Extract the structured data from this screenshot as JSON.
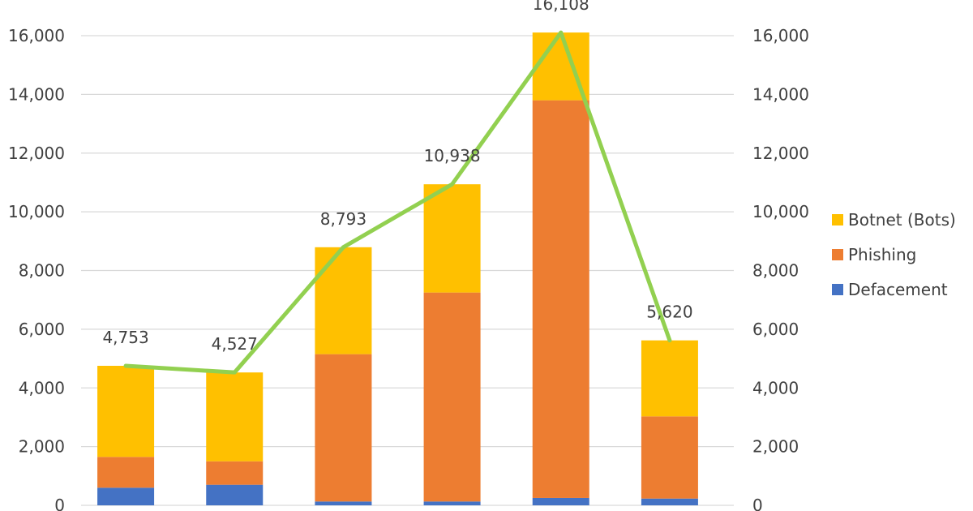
{
  "chart_data": {
    "type": "bar",
    "stacked": true,
    "categories": [
      "",
      "",
      "",
      "",
      "",
      ""
    ],
    "series": [
      {
        "name": "Defacement",
        "color": "#4472C4",
        "values": [
          600,
          700,
          130,
          130,
          250,
          230
        ]
      },
      {
        "name": "Phishing",
        "color": "#ED7D31",
        "values": [
          1050,
          800,
          5020,
          7120,
          13550,
          2800
        ]
      },
      {
        "name": "Botnet (Bots)",
        "color": "#FFC000",
        "values": [
          3103,
          3027,
          3643,
          3688,
          2308,
          2590
        ]
      }
    ],
    "total_line": {
      "color": "#92D050",
      "values": [
        4753,
        4527,
        8793,
        10938,
        16108,
        5620
      ],
      "labels": [
        "4,753",
        "4,527",
        "8,793",
        "10,938",
        "16,108",
        "5,620"
      ]
    },
    "ylim": [
      0,
      16000
    ],
    "y_ticks": [
      0,
      2000,
      4000,
      6000,
      8000,
      10000,
      12000,
      14000,
      16000
    ],
    "y_tick_labels": [
      "0",
      "2,000",
      "4,000",
      "6,000",
      "8,000",
      "10,000",
      "12,000",
      "14,000",
      "16,000"
    ],
    "secondary_axis": true,
    "grid": true,
    "legend_position": "right",
    "legend_order": [
      "Botnet (Bots)",
      "Phishing",
      "Defacement"
    ]
  }
}
